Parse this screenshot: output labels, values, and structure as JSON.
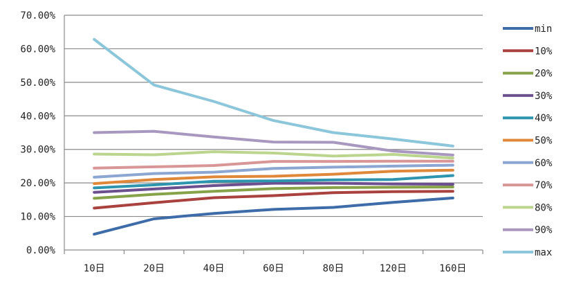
{
  "chart_data": {
    "type": "line",
    "title": "",
    "xlabel": "",
    "ylabel": "",
    "categories": [
      "10日",
      "20日",
      "40日",
      "60日",
      "80日",
      "120日",
      "160日"
    ],
    "ylim": [
      0,
      0.7
    ],
    "yticks": [
      0,
      0.1,
      0.2,
      0.3,
      0.4,
      0.5,
      0.6,
      0.7
    ],
    "ytick_labels": [
      "0.00%",
      "10.00%",
      "20.00%",
      "30.00%",
      "40.00%",
      "50.00%",
      "60.00%",
      "70.00%"
    ],
    "grid": "horizontal",
    "legend_position": "right",
    "series": [
      {
        "name": "min",
        "color": "#3D6CA8",
        "values": [
          0.047,
          0.093,
          0.109,
          0.121,
          0.127,
          0.142,
          0.155
        ]
      },
      {
        "name": "10%",
        "color": "#A9423F",
        "values": [
          0.125,
          0.141,
          0.156,
          0.162,
          0.171,
          0.174,
          0.175
        ]
      },
      {
        "name": "20%",
        "color": "#87A34A",
        "values": [
          0.154,
          0.166,
          0.175,
          0.183,
          0.186,
          0.187,
          0.188
        ]
      },
      {
        "name": "30%",
        "color": "#6B4F8E",
        "values": [
          0.172,
          0.182,
          0.192,
          0.199,
          0.199,
          0.197,
          0.196
        ]
      },
      {
        "name": "40%",
        "color": "#2E95AE",
        "values": [
          0.185,
          0.194,
          0.205,
          0.206,
          0.209,
          0.21,
          0.222
        ]
      },
      {
        "name": "50%",
        "color": "#E0883A",
        "values": [
          0.198,
          0.21,
          0.218,
          0.22,
          0.226,
          0.235,
          0.238
        ]
      },
      {
        "name": "60%",
        "color": "#8CA6D2",
        "values": [
          0.217,
          0.228,
          0.232,
          0.243,
          0.247,
          0.25,
          0.253
        ]
      },
      {
        "name": "70%",
        "color": "#D89696",
        "values": [
          0.244,
          0.248,
          0.252,
          0.264,
          0.264,
          0.265,
          0.265
        ]
      },
      {
        "name": "80%",
        "color": "#BCD58E",
        "values": [
          0.286,
          0.284,
          0.293,
          0.289,
          0.28,
          0.285,
          0.274
        ]
      },
      {
        "name": "90%",
        "color": "#A898C0",
        "values": [
          0.35,
          0.354,
          0.337,
          0.322,
          0.321,
          0.295,
          0.283
        ]
      },
      {
        "name": "max",
        "color": "#8CC6DB",
        "values": [
          0.628,
          0.492,
          0.443,
          0.386,
          0.35,
          0.331,
          0.31
        ]
      }
    ]
  }
}
